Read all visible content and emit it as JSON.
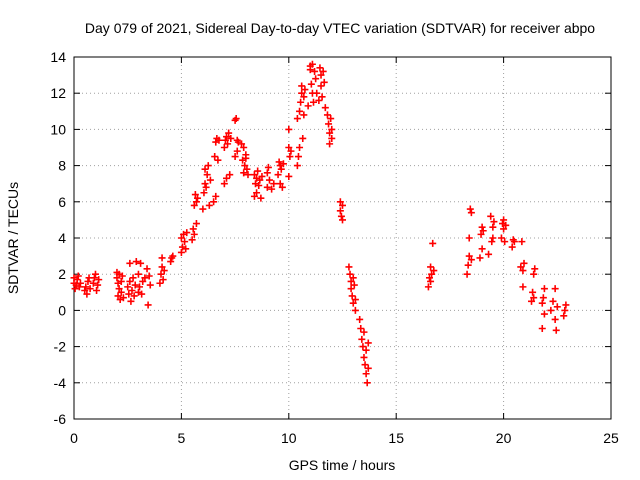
{
  "chart_data": {
    "type": "scatter",
    "title": "Day 079 of 2021, Sidereal Day-to-day VTEC variation (SDTVAR) for receiver abpo",
    "xlabel": "GPS time / hours",
    "ylabel": "SDTVAR / TECUs",
    "xlim": [
      0,
      25
    ],
    "ylim": [
      -6,
      14
    ],
    "xticks": [
      0,
      5,
      10,
      15,
      20,
      25
    ],
    "yticks": [
      -6,
      -4,
      -2,
      0,
      2,
      4,
      6,
      8,
      10,
      12,
      14
    ],
    "grid": true,
    "marker": "+",
    "color": "#ff0000",
    "series": [
      {
        "name": "SDTVAR",
        "points": [
          [
            0.0,
            1.5
          ],
          [
            0.0,
            1.8
          ],
          [
            0.05,
            1.2
          ],
          [
            0.1,
            1.4
          ],
          [
            0.15,
            1.7
          ],
          [
            0.2,
            1.9
          ],
          [
            0.25,
            1.3
          ],
          [
            0.3,
            1.5
          ],
          [
            0.5,
            1.1
          ],
          [
            0.55,
            1.3
          ],
          [
            0.6,
            0.9
          ],
          [
            0.65,
            1.6
          ],
          [
            0.7,
            1.8
          ],
          [
            0.75,
            1.2
          ],
          [
            0.9,
            1.5
          ],
          [
            0.95,
            1.8
          ],
          [
            1.0,
            2.0
          ],
          [
            1.05,
            1.1
          ],
          [
            1.1,
            1.4
          ],
          [
            1.15,
            1.7
          ],
          [
            2.0,
            2.1
          ],
          [
            2.0,
            1.8
          ],
          [
            2.05,
            1.5
          ],
          [
            2.05,
            0.8
          ],
          [
            2.1,
            1.2
          ],
          [
            2.1,
            2.0
          ],
          [
            2.15,
            0.6
          ],
          [
            2.2,
            1.6
          ],
          [
            2.2,
            1.0
          ],
          [
            2.25,
            1.9
          ],
          [
            2.3,
            0.7
          ],
          [
            2.5,
            1.3
          ],
          [
            2.55,
            0.9
          ],
          [
            2.6,
            1.6
          ],
          [
            2.6,
            2.6
          ],
          [
            2.65,
            0.5
          ],
          [
            2.7,
            1.1
          ],
          [
            2.75,
            1.8
          ],
          [
            2.8,
            0.8
          ],
          [
            2.85,
            1.4
          ],
          [
            2.9,
            2.7
          ],
          [
            3.0,
            1.0
          ],
          [
            3.0,
            2.0
          ],
          [
            3.05,
            1.3
          ],
          [
            3.1,
            2.6
          ],
          [
            3.15,
            0.9
          ],
          [
            3.2,
            1.6
          ],
          [
            3.3,
            1.8
          ],
          [
            3.4,
            2.3
          ],
          [
            3.45,
            0.3
          ],
          [
            3.5,
            1.9
          ],
          [
            3.55,
            1.4
          ],
          [
            4.0,
            1.5
          ],
          [
            4.05,
            2.0
          ],
          [
            4.1,
            2.4
          ],
          [
            4.1,
            2.9
          ],
          [
            4.15,
            1.7
          ],
          [
            4.2,
            2.2
          ],
          [
            4.5,
            2.7
          ],
          [
            4.55,
            2.9
          ],
          [
            4.6,
            3.0
          ],
          [
            5.0,
            3.2
          ],
          [
            5.0,
            4.0
          ],
          [
            5.05,
            3.5
          ],
          [
            5.1,
            4.2
          ],
          [
            5.15,
            3.8
          ],
          [
            5.2,
            3.4
          ],
          [
            5.25,
            4.3
          ],
          [
            5.5,
            3.9
          ],
          [
            5.55,
            4.5
          ],
          [
            5.6,
            5.8
          ],
          [
            5.6,
            4.2
          ],
          [
            5.65,
            6.4
          ],
          [
            5.7,
            4.8
          ],
          [
            5.75,
            6.2
          ],
          [
            5.7,
            6.0
          ],
          [
            6.0,
            5.6
          ],
          [
            6.05,
            6.5
          ],
          [
            6.1,
            7.0
          ],
          [
            6.1,
            7.8
          ],
          [
            6.15,
            6.8
          ],
          [
            6.2,
            7.5
          ],
          [
            6.25,
            8.0
          ],
          [
            6.3,
            5.8
          ],
          [
            6.35,
            7.2
          ],
          [
            6.5,
            6.0
          ],
          [
            6.55,
            8.5
          ],
          [
            6.6,
            9.3
          ],
          [
            6.6,
            6.3
          ],
          [
            6.65,
            9.5
          ],
          [
            6.7,
            8.3
          ],
          [
            6.75,
            9.4
          ],
          [
            7.0,
            7.0
          ],
          [
            7.0,
            9.0
          ],
          [
            7.05,
            9.4
          ],
          [
            7.1,
            9.6
          ],
          [
            7.1,
            7.3
          ],
          [
            7.15,
            9.2
          ],
          [
            7.2,
            9.8
          ],
          [
            7.25,
            7.5
          ],
          [
            7.3,
            9.5
          ],
          [
            7.5,
            8.5
          ],
          [
            7.5,
            10.5
          ],
          [
            7.55,
            10.6
          ],
          [
            7.6,
            9.4
          ],
          [
            7.6,
            8.8
          ],
          [
            7.65,
            9.3
          ],
          [
            7.8,
            9.2
          ],
          [
            7.85,
            8.3
          ],
          [
            7.9,
            9.0
          ],
          [
            7.9,
            7.6
          ],
          [
            7.95,
            8.0
          ],
          [
            8.0,
            8.6
          ],
          [
            8.0,
            8.4
          ],
          [
            8.05,
            7.8
          ],
          [
            8.1,
            7.5
          ],
          [
            8.4,
            6.3
          ],
          [
            8.4,
            7.5
          ],
          [
            8.45,
            7.0
          ],
          [
            8.5,
            6.5
          ],
          [
            8.5,
            7.3
          ],
          [
            8.55,
            7.7
          ],
          [
            8.6,
            6.9
          ],
          [
            8.65,
            7.2
          ],
          [
            8.7,
            6.2
          ],
          [
            8.75,
            7.4
          ],
          [
            9.0,
            6.8
          ],
          [
            9.0,
            7.6
          ],
          [
            9.05,
            7.9
          ],
          [
            9.1,
            7.2
          ],
          [
            9.2,
            6.7
          ],
          [
            9.3,
            7.0
          ],
          [
            9.5,
            7.5
          ],
          [
            9.55,
            8.2
          ],
          [
            9.6,
            7.0
          ],
          [
            9.6,
            8.0
          ],
          [
            9.65,
            7.8
          ],
          [
            9.7,
            6.8
          ],
          [
            9.75,
            8.1
          ],
          [
            10.0,
            7.4
          ],
          [
            10.0,
            9.0
          ],
          [
            10.0,
            10.0
          ],
          [
            10.05,
            8.5
          ],
          [
            10.1,
            8.8
          ],
          [
            10.4,
            8.0
          ],
          [
            10.4,
            10.6
          ],
          [
            10.45,
            8.5
          ],
          [
            10.5,
            11.0
          ],
          [
            10.5,
            9.0
          ],
          [
            10.55,
            11.5
          ],
          [
            10.6,
            12.0
          ],
          [
            10.6,
            12.4
          ],
          [
            10.65,
            9.5
          ],
          [
            10.7,
            11.8
          ],
          [
            10.75,
            12.2
          ],
          [
            10.7,
            10.8
          ],
          [
            10.9,
            11.3
          ],
          [
            11.0,
            13.5
          ],
          [
            11.0,
            13.3
          ],
          [
            11.05,
            12.5
          ],
          [
            11.1,
            12.0
          ],
          [
            11.1,
            13.6
          ],
          [
            11.15,
            11.5
          ],
          [
            11.2,
            13.2
          ],
          [
            11.25,
            12.8
          ],
          [
            11.3,
            12.0
          ],
          [
            11.4,
            11.6
          ],
          [
            11.45,
            13.4
          ],
          [
            11.5,
            13.0
          ],
          [
            11.5,
            12.4
          ],
          [
            11.55,
            11.8
          ],
          [
            11.6,
            13.2
          ],
          [
            11.65,
            12.6
          ],
          [
            11.7,
            11.2
          ],
          [
            11.8,
            10.8
          ],
          [
            11.85,
            10.3
          ],
          [
            11.9,
            9.8
          ],
          [
            11.9,
            9.2
          ],
          [
            11.95,
            10.6
          ],
          [
            12.0,
            9.5
          ],
          [
            12.0,
            10.0
          ],
          [
            12.4,
            6.0
          ],
          [
            12.4,
            5.5
          ],
          [
            12.45,
            5.2
          ],
          [
            12.5,
            5.8
          ],
          [
            12.5,
            5.0
          ],
          [
            12.8,
            2.4
          ],
          [
            12.85,
            2.0
          ],
          [
            12.9,
            1.6
          ],
          [
            12.9,
            1.2
          ],
          [
            12.95,
            0.8
          ],
          [
            13.0,
            1.8
          ],
          [
            13.0,
            0.4
          ],
          [
            13.05,
            1.4
          ],
          [
            13.1,
            0.6
          ],
          [
            13.1,
            0.0
          ],
          [
            13.3,
            -0.5
          ],
          [
            13.35,
            -1.0
          ],
          [
            13.4,
            -1.6
          ],
          [
            13.45,
            -2.0
          ],
          [
            13.5,
            -2.6
          ],
          [
            13.5,
            -1.2
          ],
          [
            13.55,
            -3.0
          ],
          [
            13.6,
            -3.5
          ],
          [
            13.6,
            -2.2
          ],
          [
            13.65,
            -4.0
          ],
          [
            13.7,
            -3.2
          ],
          [
            13.7,
            -1.8
          ],
          [
            16.5,
            1.3
          ],
          [
            16.55,
            1.8
          ],
          [
            16.6,
            2.4
          ],
          [
            16.6,
            1.6
          ],
          [
            16.65,
            2.0
          ],
          [
            16.7,
            3.7
          ],
          [
            16.75,
            2.2
          ],
          [
            18.3,
            2.0
          ],
          [
            18.35,
            2.5
          ],
          [
            18.4,
            3.0
          ],
          [
            18.4,
            4.0
          ],
          [
            18.45,
            5.6
          ],
          [
            18.5,
            5.4
          ],
          [
            18.5,
            2.8
          ],
          [
            18.9,
            2.9
          ],
          [
            18.95,
            4.2
          ],
          [
            19.0,
            4.6
          ],
          [
            19.0,
            3.4
          ],
          [
            19.05,
            4.4
          ],
          [
            19.3,
            3.1
          ],
          [
            19.4,
            5.2
          ],
          [
            19.45,
            3.8
          ],
          [
            19.5,
            4.6
          ],
          [
            19.5,
            4.0
          ],
          [
            19.55,
            4.9
          ],
          [
            19.9,
            4.0
          ],
          [
            19.95,
            4.8
          ],
          [
            20.0,
            4.5
          ],
          [
            20.0,
            5.0
          ],
          [
            20.05,
            3.8
          ],
          [
            20.1,
            4.7
          ],
          [
            20.4,
            3.5
          ],
          [
            20.45,
            3.9
          ],
          [
            20.5,
            3.8
          ],
          [
            20.8,
            2.4
          ],
          [
            20.85,
            3.8
          ],
          [
            20.9,
            2.2
          ],
          [
            20.9,
            1.3
          ],
          [
            20.95,
            2.6
          ],
          [
            21.3,
            0.5
          ],
          [
            21.35,
            1.0
          ],
          [
            21.4,
            2.0
          ],
          [
            21.4,
            0.7
          ],
          [
            21.45,
            2.3
          ],
          [
            21.8,
            -1.0
          ],
          [
            21.8,
            0.4
          ],
          [
            21.85,
            0.7
          ],
          [
            21.9,
            1.2
          ],
          [
            21.9,
            -0.2
          ],
          [
            22.2,
            0.0
          ],
          [
            22.3,
            0.5
          ],
          [
            22.4,
            -0.5
          ],
          [
            22.4,
            1.2
          ],
          [
            22.45,
            -1.1
          ],
          [
            22.5,
            0.2
          ],
          [
            22.8,
            -0.3
          ],
          [
            22.85,
            0.0
          ],
          [
            22.9,
            0.3
          ]
        ]
      }
    ]
  }
}
